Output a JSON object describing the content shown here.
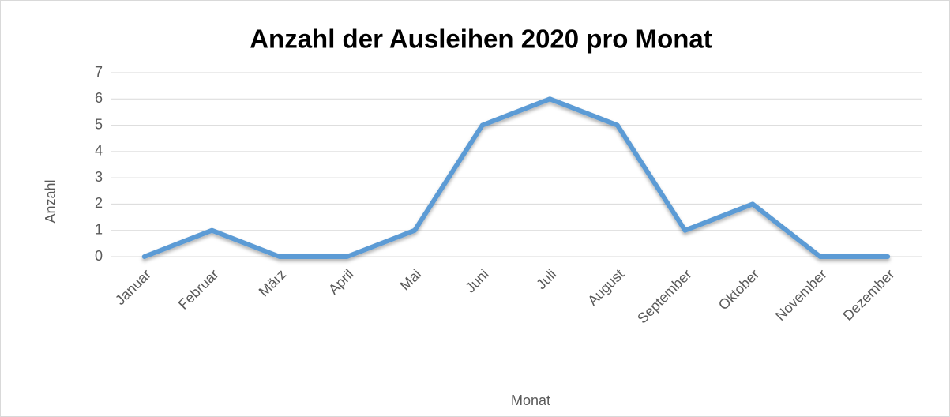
{
  "chart_data": {
    "type": "line",
    "title": "Anzahl der Ausleihen 2020 pro Monat",
    "x_label": "Monat",
    "y_label": "Anzahl",
    "categories": [
      "Januar",
      "Februar",
      "März",
      "April",
      "Mai",
      "Juni",
      "Juli",
      "August",
      "September",
      "Oktober",
      "November",
      "Dezember"
    ],
    "values": [
      0,
      1,
      0,
      0,
      1,
      5,
      6,
      5,
      1,
      2,
      0,
      0
    ],
    "color": "#5b9bd5",
    "ylim": [
      0,
      7
    ],
    "yticks": [
      0,
      1,
      2,
      3,
      4,
      5,
      6,
      7
    ],
    "grid": true
  }
}
